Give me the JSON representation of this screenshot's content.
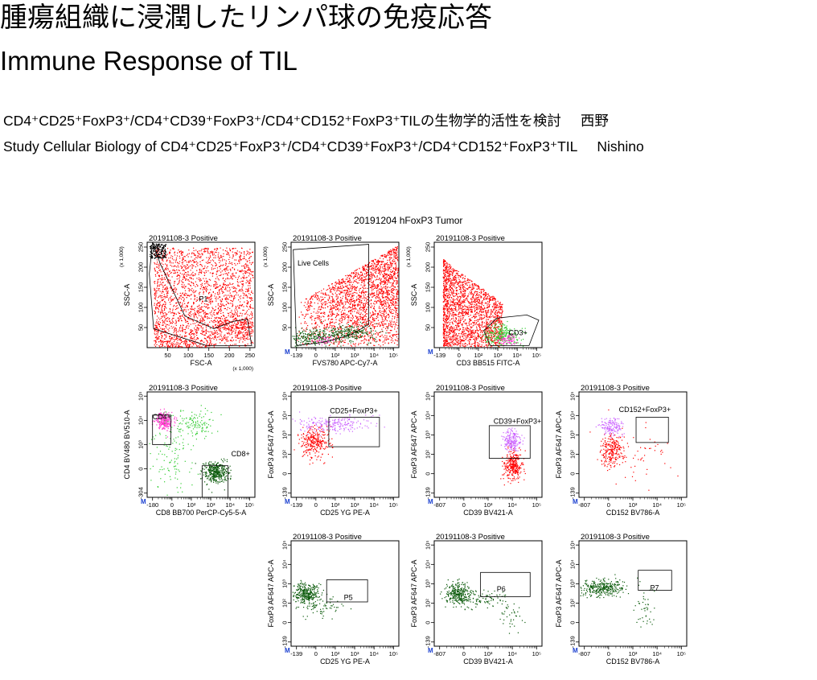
{
  "header": {
    "title_jp": "腫瘍組織に浸潤したリンパ球の免疫応答",
    "title_en": "Immune Response of TIL",
    "subtitle_jp": {
      "markers_text": "CD4⁺CD25⁺FoxP3⁺/CD4⁺CD39⁺FoxP3⁺/CD4⁺CD152⁺FoxP3⁺TIL",
      "suffix": "の生物学的活性を検討",
      "author": "西野"
    },
    "subtitle_en": {
      "prefix": "Study Cellular Biology of ",
      "markers_text": "CD4⁺CD25⁺FoxP3⁺/CD4⁺CD39⁺FoxP3⁺/CD4⁺CD152⁺FoxP3⁺TIL",
      "author": "Nishino"
    }
  },
  "experiment_title": "20191204 hFoxP3 Tumor",
  "colors": {
    "red": "#ff0000",
    "green_light": "#33cc33",
    "green_dark": "#0a5a0a",
    "magenta": "#ff33cc",
    "violet": "#cc66ff"
  },
  "chart_data": [
    {
      "id": "p1",
      "type": "scatter",
      "title": "20191108-3 Positive",
      "xlabel": "FSC-A",
      "ylabel": "SSC-A",
      "x_scale_label": "(x 1,000)",
      "y_scale_label": "(x 1,000)",
      "x_ticks": [
        "50",
        "100",
        "150",
        "200",
        "250"
      ],
      "y_ticks": [
        "50",
        "100",
        "150",
        "200",
        "250"
      ],
      "xlim": [
        0,
        262
      ],
      "ylim": [
        0,
        262
      ],
      "gates": [
        {
          "name": "P1"
        }
      ],
      "populations": [
        "red",
        "black"
      ]
    },
    {
      "id": "p2",
      "type": "scatter",
      "title": "20191108-3 Positive",
      "xlabel": "FVS780 APC-Cy7-A",
      "ylabel": "SSC-A",
      "y_scale_label": "(x 1,000)",
      "x_ticks": [
        "-139",
        "0",
        "10²",
        "10³",
        "10⁴",
        "10⁵"
      ],
      "y_ticks": [
        "50",
        "100",
        "150",
        "200",
        "250"
      ],
      "gates": [
        {
          "name": "Live Cells"
        }
      ],
      "populations": [
        "red",
        "green",
        "magenta"
      ]
    },
    {
      "id": "p3",
      "type": "scatter",
      "title": "20191108-3 Positive",
      "xlabel": "CD3 BB515 FITC-A",
      "ylabel": "SSC-A",
      "y_scale_label": "(x 1,000)",
      "x_ticks": [
        "-139",
        "0",
        "10²",
        "10³",
        "10⁴",
        "10⁵"
      ],
      "y_ticks": [
        "50",
        "100",
        "150",
        "200",
        "250"
      ],
      "gates": [
        {
          "name": "CD3+"
        }
      ],
      "populations": [
        "red",
        "green",
        "magenta"
      ]
    },
    {
      "id": "p4",
      "type": "scatter",
      "title": "20191108-3 Positive",
      "xlabel": "CD8 BB700 PerCP-Cy5-5-A",
      "ylabel": "CD4 BV480 BV510-A",
      "x_ticks": [
        "-180",
        "0",
        "10²",
        "10³",
        "10⁴",
        "10⁵"
      ],
      "y_ticks": [
        "-304",
        "0",
        "10³",
        "10⁴",
        "10⁵"
      ],
      "gates": [
        {
          "name": "CD4+"
        },
        {
          "name": "CD8+"
        }
      ],
      "populations": [
        "magenta",
        "green_light",
        "green_dark"
      ]
    },
    {
      "id": "p5",
      "type": "scatter",
      "title": "20191108-3 Positive",
      "xlabel": "CD25 YG PE-A",
      "ylabel": "FoxP3 AF647 APC-A",
      "x_ticks": [
        "-139",
        "0",
        "10²",
        "10³",
        "10⁴",
        "10⁵"
      ],
      "y_ticks": [
        "-139",
        "0",
        "10²",
        "10³",
        "10⁴",
        "10⁵"
      ],
      "gates": [
        {
          "name": "CD25+FoxP3+"
        }
      ],
      "populations": [
        "red",
        "violet"
      ]
    },
    {
      "id": "p6",
      "type": "scatter",
      "title": "20191108-3 Positive",
      "xlabel": "CD39 BV421-A",
      "ylabel": "FoxP3 AF647 APC-A",
      "x_ticks": [
        "-807",
        "0",
        "10³",
        "10⁴",
        "10⁵"
      ],
      "y_ticks": [
        "-139",
        "0",
        "10²",
        "10³",
        "10⁴",
        "10⁵"
      ],
      "gates": [
        {
          "name": "CD39+FoxP3+"
        }
      ],
      "populations": [
        "red",
        "violet"
      ]
    },
    {
      "id": "p7",
      "type": "scatter",
      "title": "20191108-3 Positive",
      "xlabel": "CD152 BV786-A",
      "ylabel": "FoxP3 AF647 APC-A",
      "x_ticks": [
        "-807",
        "0",
        "10³",
        "10⁴",
        "10⁵"
      ],
      "y_ticks": [
        "-139",
        "0",
        "10²",
        "10³",
        "10⁴",
        "10⁵"
      ],
      "gates": [
        {
          "name": "CD152+FoxP3+"
        }
      ],
      "populations": [
        "red",
        "violet"
      ]
    },
    {
      "id": "p8",
      "type": "scatter",
      "title": "20191108-3 Positive",
      "xlabel": "CD25 YG PE-A",
      "ylabel": "FoxP3 AF647 APC-A",
      "x_ticks": [
        "-139",
        "0",
        "10²",
        "10³",
        "10⁴",
        "10⁵"
      ],
      "y_ticks": [
        "-139",
        "0",
        "10²",
        "10³",
        "10⁴",
        "10⁵"
      ],
      "gates": [
        {
          "name": "P5"
        }
      ],
      "populations": [
        "green_dark"
      ]
    },
    {
      "id": "p9",
      "type": "scatter",
      "title": "20191108-3 Positive",
      "xlabel": "CD39 BV421-A",
      "ylabel": "FoxP3 AF647 APC-A",
      "x_ticks": [
        "-807",
        "0",
        "10³",
        "10⁴",
        "10⁵"
      ],
      "y_ticks": [
        "-139",
        "0",
        "10²",
        "10³",
        "10⁴",
        "10⁵"
      ],
      "gates": [
        {
          "name": "P6"
        }
      ],
      "populations": [
        "green_dark"
      ]
    },
    {
      "id": "p10",
      "type": "scatter",
      "title": "20191108-3 Positive",
      "xlabel": "CD152 BV786-A",
      "ylabel": "FoxP3 AF647 APC-A",
      "x_ticks": [
        "-807",
        "0",
        "10³",
        "10⁴",
        "10⁵"
      ],
      "y_ticks": [
        "-139",
        "0",
        "10²",
        "10³",
        "10⁴",
        "10⁵"
      ],
      "gates": [
        {
          "name": "P7"
        }
      ],
      "populations": [
        "green_dark"
      ]
    }
  ]
}
